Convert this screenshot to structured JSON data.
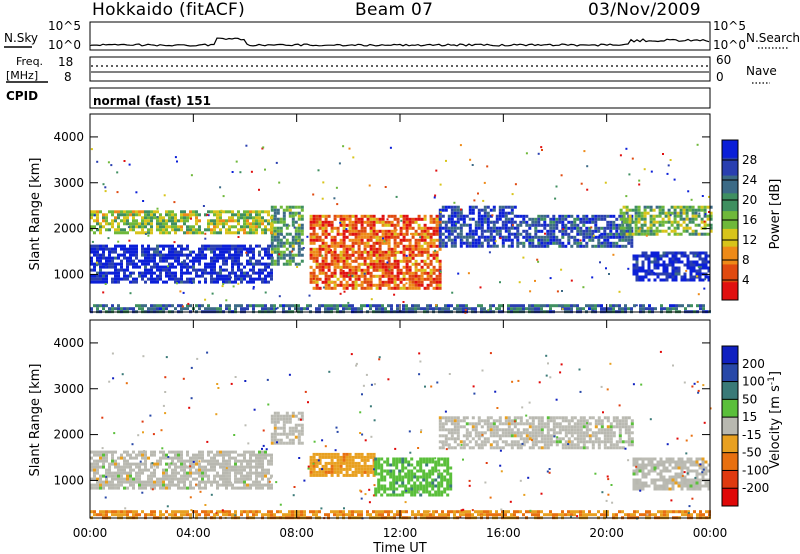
{
  "header": {
    "title": "Hokkaido (fitACF)",
    "beam": "Beam 07",
    "date": "03/Nov/2009"
  },
  "panels": {
    "nsky": {
      "label": "N.Sky",
      "ticks": [
        "10^5",
        "10^0"
      ]
    },
    "nsearch": {
      "label": "N.Search",
      "ticks": [
        "10^5",
        "10^0"
      ]
    },
    "freq": {
      "label_line1": "Freq.",
      "label_line2": "[MHz]",
      "ticks": [
        "18",
        "8"
      ]
    },
    "nave": {
      "label": "Nave",
      "ticks": [
        "60",
        "0"
      ]
    },
    "cpid": {
      "label": "CPID",
      "mode_text": "normal (fast) 151"
    }
  },
  "colors": {
    "power_scale": [
      "#0b1fd8",
      "#2a3fb0",
      "#3c6a86",
      "#3f8f60",
      "#6fb83a",
      "#d8c41a",
      "#ee8a18",
      "#e04a10",
      "#e01010"
    ],
    "velocity_scale": [
      "#1020c0",
      "#2848a8",
      "#3a7a78",
      "#5abf3a",
      "#b8b8b0",
      "#e8a020",
      "#e87010",
      "#e03a10",
      "#e00808"
    ],
    "ground_scatter": "#bcbcb4"
  },
  "chart_data": [
    {
      "type": "heatmap",
      "name": "power",
      "xlabel": "",
      "ylabel": "Slant Range [km]",
      "xlim": [
        "00:00",
        "24:00"
      ],
      "ylim": [
        180,
        4500
      ],
      "yticks": [
        "4000",
        "3000",
        "2000",
        "1000"
      ],
      "colorbar": {
        "label": "Power [dB]",
        "ticks": [
          "28",
          "24",
          "20",
          "16",
          "12",
          "8",
          "4"
        ],
        "range": [
          0,
          30
        ]
      },
      "regions": [
        {
          "t0": 0.0,
          "t1": 7.0,
          "r0": 850,
          "r1": 1650,
          "value": 28
        },
        {
          "t0": 7.0,
          "t1": 8.2,
          "r0": 1200,
          "r1": 2500,
          "value": 18
        },
        {
          "t0": 8.5,
          "t1": 13.5,
          "r0": 700,
          "r1": 2300,
          "value": 6
        },
        {
          "t0": 13.5,
          "t1": 16.5,
          "r0": 1600,
          "r1": 2500,
          "value": 26
        },
        {
          "t0": 16.5,
          "t1": 21.0,
          "r0": 1600,
          "r1": 2300,
          "value": 24
        },
        {
          "t0": 21.0,
          "t1": 24.0,
          "r0": 900,
          "r1": 1500,
          "value": 28
        },
        {
          "t0": 0.0,
          "t1": 7.0,
          "r0": 1900,
          "r1": 2400,
          "value": 14
        },
        {
          "t0": 20.5,
          "t1": 24.0,
          "r0": 1900,
          "r1": 2500,
          "value": 16
        },
        {
          "t0": 0.0,
          "t1": 24.0,
          "r0": 180,
          "r1": 350,
          "value": 22
        }
      ]
    },
    {
      "type": "heatmap",
      "name": "velocity",
      "xlabel": "Time UT",
      "ylabel": "Slant Range [km]",
      "xlim": [
        "00:00",
        "24:00"
      ],
      "ylim": [
        180,
        4500
      ],
      "xticks": [
        "00:00",
        "04:00",
        "08:00",
        "12:00",
        "16:00",
        "20:00",
        "00:00"
      ],
      "yticks": [
        "4000",
        "3000",
        "2000",
        "1000"
      ],
      "colorbar": {
        "label": "Velocity [m s^-1]",
        "ticks": [
          "200",
          "100",
          "50",
          "15",
          "-15",
          "-50",
          "-100",
          "-200"
        ],
        "range": [
          -250,
          250
        ]
      },
      "regions": [
        {
          "t0": 0.0,
          "t1": 7.0,
          "r0": 850,
          "r1": 1650,
          "value": 0
        },
        {
          "t0": 7.0,
          "t1": 8.2,
          "r0": 1800,
          "r1": 2500,
          "value": 0
        },
        {
          "t0": 8.5,
          "t1": 11.0,
          "r0": 1100,
          "r1": 1600,
          "value": -60
        },
        {
          "t0": 11.0,
          "t1": 14.0,
          "r0": 700,
          "r1": 1500,
          "value": 60
        },
        {
          "t0": 13.5,
          "t1": 21.0,
          "r0": 1700,
          "r1": 2400,
          "value": 0
        },
        {
          "t0": 21.0,
          "t1": 24.0,
          "r0": 800,
          "r1": 1500,
          "value": 0
        },
        {
          "t0": 0.0,
          "t1": 24.0,
          "r0": 180,
          "r1": 350,
          "value": -80
        }
      ]
    }
  ]
}
